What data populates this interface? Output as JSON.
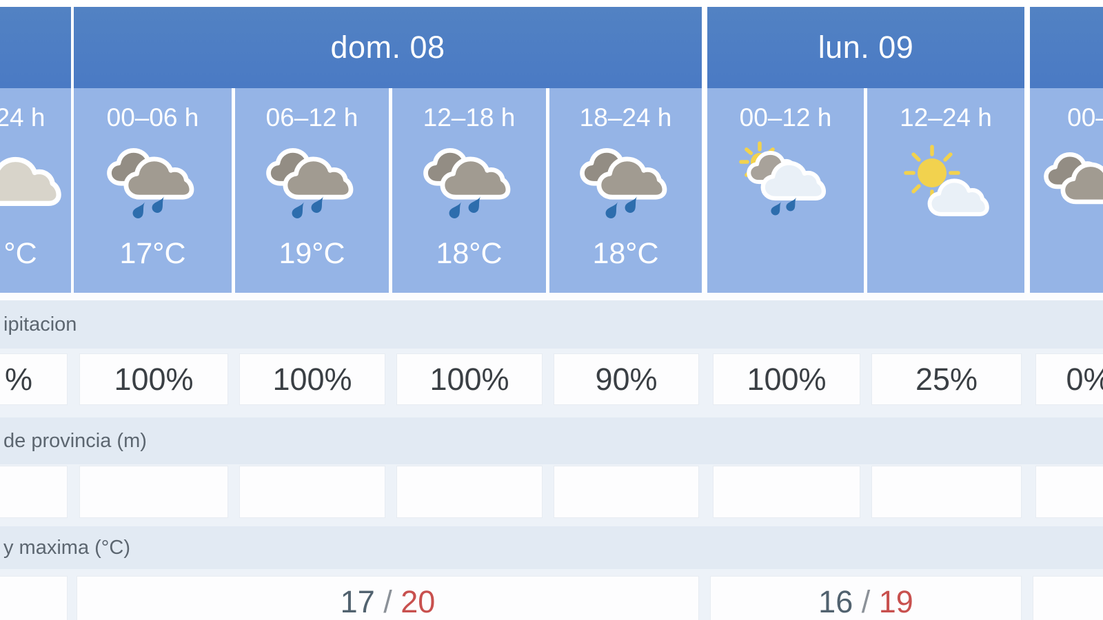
{
  "forecast_table": {
    "day_headers": [
      {
        "label": ""
      },
      {
        "label": "dom. 08"
      },
      {
        "label": "lun. 09"
      },
      {
        "label": ""
      }
    ],
    "columns": [
      {
        "day": 0,
        "hours": "24 h",
        "icon": "cloud-icon",
        "temp": "°C",
        "precip": "%",
        "snow": ""
      },
      {
        "day": 1,
        "hours": "00–06 h",
        "icon": "rain-clouds-icon",
        "temp": "17°C",
        "precip": "100%",
        "snow": ""
      },
      {
        "day": 1,
        "hours": "06–12 h",
        "icon": "rain-clouds-icon",
        "temp": "19°C",
        "precip": "100%",
        "snow": ""
      },
      {
        "day": 1,
        "hours": "12–18 h",
        "icon": "rain-clouds-icon",
        "temp": "18°C",
        "precip": "100%",
        "snow": ""
      },
      {
        "day": 1,
        "hours": "18–24 h",
        "icon": "rain-clouds-icon",
        "temp": "18°C",
        "precip": "90%",
        "snow": ""
      },
      {
        "day": 2,
        "hours": "00–12 h",
        "icon": "sun-cloud-rain-icon",
        "temp": "",
        "precip": "100%",
        "snow": ""
      },
      {
        "day": 2,
        "hours": "12–24 h",
        "icon": "sun-cloud-icon",
        "temp": "",
        "precip": "25%",
        "snow": ""
      },
      {
        "day": 3,
        "hours": "00–",
        "icon": "dark-clouds-icon",
        "temp": "",
        "precip": "0%",
        "snow": ""
      }
    ],
    "row_labels": {
      "precipitation": "ipitacion",
      "snow_level": "de provincia (m)",
      "temp_minmax": "y maxima (°C)"
    },
    "minmax_separator": "/",
    "minmax_by_day": [
      {
        "min": "",
        "max": ""
      },
      {
        "min": "17",
        "max": "20"
      },
      {
        "min": "16",
        "max": "19"
      },
      {
        "min": "",
        "max": ""
      }
    ],
    "colors": {
      "page_bg": "#edf2f8",
      "day_header_bg": "#4e7ec3",
      "hour_cell_bg": "#95b4e6",
      "band_bg": "#e2eaf3",
      "cell_bg": "#fdfdfe",
      "header_text": "#ffffff",
      "value_text": "#3a3f44",
      "label_text": "#5c6670",
      "min_temp_color": "#51626f",
      "slash_color": "#8b9198",
      "max_temp_color": "#c8504e",
      "rain_drop": "#2d6dad",
      "cloud_back": "#938d84",
      "cloud_front": "#a19b91",
      "cloud_light": "#d8d4ca",
      "cloud_white": "#e9f0f7",
      "cloud_pale_gray": "#a8a29a",
      "sun": "#f2d24e"
    }
  }
}
